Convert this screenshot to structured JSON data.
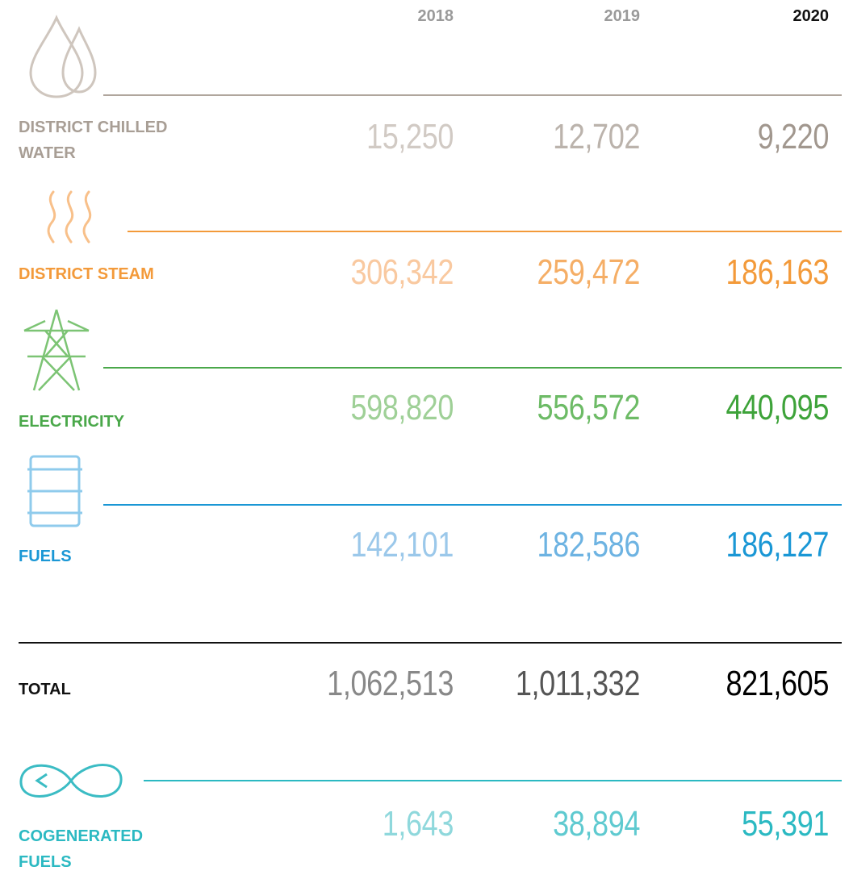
{
  "header": {
    "years": [
      "2018",
      "2019",
      "2020"
    ]
  },
  "rows": [
    {
      "label": "DISTRICT CHILLED WATER",
      "values": [
        "15,250",
        "12,702",
        "9,220"
      ]
    },
    {
      "label": "DISTRICT STEAM",
      "values": [
        "306,342",
        "259,472",
        "186,163"
      ]
    },
    {
      "label": "ELECTRICITY",
      "values": [
        "598,820",
        "556,572",
        "440,095"
      ]
    },
    {
      "label": "FUELS",
      "values": [
        "142,101",
        "182,586",
        "186,127"
      ]
    },
    {
      "label": "TOTAL",
      "values": [
        "1,062,513",
        "1,011,332",
        "821,605"
      ]
    },
    {
      "label": "COGENERATED FUELS",
      "values": [
        "1,643",
        "38,894",
        "55,391"
      ]
    }
  ]
}
